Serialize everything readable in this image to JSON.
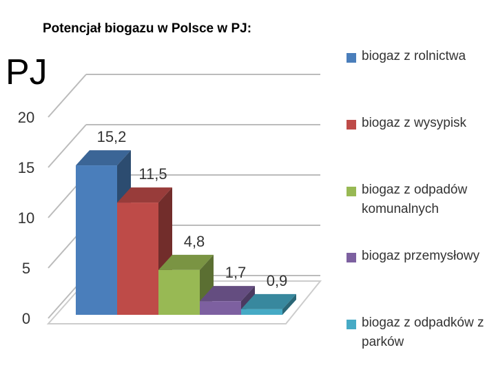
{
  "chart_data": {
    "type": "bar3d",
    "title": "Potencjał biogazu w Polsce w PJ:",
    "y_label": "PJ",
    "categories": [
      "biogaz z rolnictwa",
      "biogaz z wysypisk",
      "biogaz z odpadów komunalnych",
      "biogaz przemysłowy",
      "biogaz z odpadków z parków"
    ],
    "values": [
      15.2,
      11.5,
      4.8,
      1.7,
      0.9
    ],
    "value_labels": [
      "15,2",
      "11,5",
      "4,8",
      "1,7",
      "0,9"
    ],
    "colors": [
      "#4a7ebb",
      "#be4b48",
      "#98b954",
      "#7d60a0",
      "#46aac5"
    ],
    "ylim": [
      0,
      20
    ],
    "yticks": [
      0,
      5,
      10,
      15,
      20
    ],
    "grid": true
  }
}
